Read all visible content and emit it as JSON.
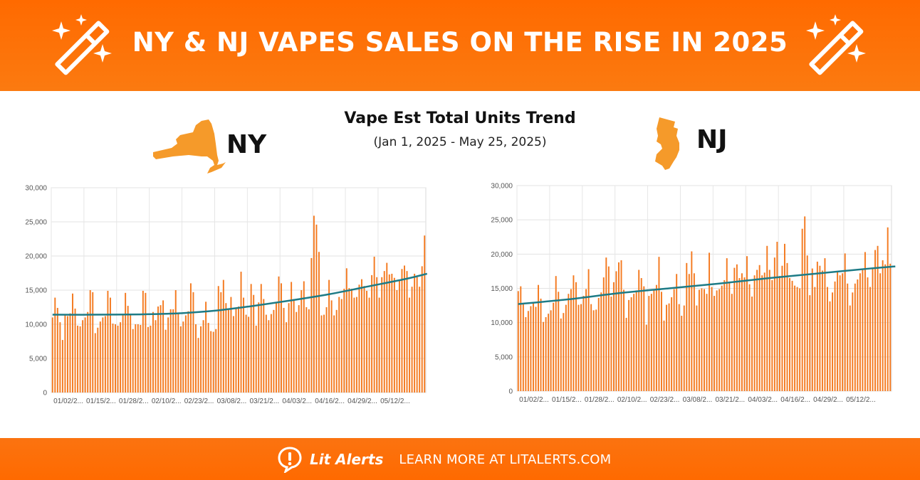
{
  "header": {
    "title": "NY & NJ VAPES SALES ON THE RISE IN 2025"
  },
  "icons": {
    "left_icon": "magic-wand-icon",
    "right_icon": "magic-wand-icon",
    "footer_icon": "alert-bubble-icon"
  },
  "colors": {
    "brand_orange": "#ff6a00",
    "bar_orange": "#f47a20",
    "trend_teal": "#1d7b86",
    "state_fill": "#f59a2a"
  },
  "main": {
    "chart_title": "Vape Est Total Units Trend",
    "date_range": "(Jan 1, 2025 - May 25, 2025)"
  },
  "states": {
    "ny": {
      "label": "NY",
      "icon": "new-york-state-icon"
    },
    "nj": {
      "label": "NJ",
      "icon": "new-jersey-state-icon"
    }
  },
  "footer": {
    "brand": "Lit Alerts",
    "cta": "LEARN MORE AT LITALERTS.COM"
  },
  "chart_data": [
    {
      "id": "ny",
      "type": "bar",
      "title": "NY",
      "ylim": [
        0,
        30000
      ],
      "yticks": [
        0,
        5000,
        10000,
        15000,
        20000,
        25000,
        30000
      ],
      "ytick_labels": [
        "0",
        "5,000",
        "10,000",
        "15,000",
        "20,000",
        "25,000",
        "30,000"
      ],
      "xtick_labels": [
        "01/02/2...",
        "01/15/2...",
        "01/28/2...",
        "02/10/2...",
        "02/23/2...",
        "03/08/2...",
        "03/21/2...",
        "04/03/2...",
        "04/16/2...",
        "04/29/2...",
        "05/12/2..."
      ],
      "xtick_every": 13,
      "series": [
        {
          "name": "Est Total Units",
          "type": "bar",
          "values": [
            11000,
            13900,
            12400,
            10300,
            7700,
            11500,
            11200,
            11600,
            14500,
            12300,
            9800,
            9700,
            10600,
            11000,
            11800,
            15000,
            14700,
            8700,
            9500,
            10400,
            11000,
            11200,
            14900,
            13900,
            10100,
            10000,
            9800,
            10300,
            11500,
            14600,
            12700,
            11500,
            9300,
            10000,
            10000,
            9900,
            14900,
            14600,
            9600,
            9800,
            11800,
            10600,
            12600,
            12800,
            13500,
            9200,
            11000,
            12200,
            12200,
            15000,
            11600,
            9700,
            10400,
            11300,
            11900,
            16000,
            14700,
            10000,
            8000,
            9700,
            10600,
            13300,
            10200,
            9000,
            8900,
            9300,
            15600,
            14700,
            16500,
            13100,
            12100,
            14000,
            11200,
            12300,
            12600,
            17700,
            13900,
            11400,
            11100,
            15900,
            14300,
            9800,
            13200,
            15900,
            13700,
            11400,
            10600,
            11500,
            12100,
            13200,
            17000,
            16000,
            12400,
            10300,
            13100,
            16200,
            13700,
            11800,
            12800,
            15000,
            16300,
            12500,
            12200,
            19700,
            25900,
            24600,
            20600,
            11300,
            11400,
            12500,
            16500,
            13500,
            11300,
            12100,
            14000,
            13700,
            15200,
            18200,
            15300,
            15200,
            13900,
            14000,
            15800,
            16600,
            15600,
            14900,
            13900,
            17200,
            19900,
            16900,
            13900,
            16900,
            17800,
            19000,
            17300,
            17400,
            16800,
            15000,
            16400,
            18100,
            18600,
            17800,
            13900,
            15500,
            17400,
            16900,
            15500,
            18500,
            23000
          ]
        },
        {
          "name": "Trend",
          "type": "line",
          "points": [
            [
              0,
              11400
            ],
            [
              15,
              11400
            ],
            [
              35,
              11450
            ],
            [
              50,
              11600
            ],
            [
              65,
              12000
            ],
            [
              80,
              12700
            ],
            [
              95,
              13500
            ],
            [
              110,
              14400
            ],
            [
              125,
              15500
            ],
            [
              140,
              16600
            ],
            [
              149,
              17400
            ]
          ]
        }
      ]
    },
    {
      "id": "nj",
      "type": "bar",
      "title": "NJ",
      "ylim": [
        0,
        30000
      ],
      "yticks": [
        0,
        5000,
        10000,
        15000,
        20000,
        25000,
        30000
      ],
      "ytick_labels": [
        "0",
        "5,000",
        "10,000",
        "15,000",
        "20,000",
        "25,000",
        "30,000"
      ],
      "xtick_labels": [
        "01/02/2...",
        "01/15/2...",
        "01/28/2...",
        "02/10/2...",
        "02/23/2...",
        "03/08/2...",
        "03/21/2...",
        "04/03/2...",
        "04/16/2...",
        "04/29/2...",
        "05/12/2..."
      ],
      "xtick_every": 13,
      "series": [
        {
          "name": "Est Total Units",
          "type": "bar",
          "values": [
            14600,
            15300,
            12800,
            10800,
            11700,
            12400,
            12800,
            12300,
            15500,
            13500,
            10100,
            10800,
            11300,
            11800,
            12900,
            16800,
            14500,
            10600,
            11400,
            12600,
            14200,
            14900,
            16900,
            15900,
            12600,
            12700,
            13900,
            14900,
            17800,
            12700,
            11800,
            11900,
            13600,
            14400,
            16600,
            19500,
            18200,
            13800,
            15900,
            17500,
            18800,
            19100,
            14800,
            10700,
            13300,
            13700,
            14200,
            14700,
            17700,
            16500,
            15300,
            9700,
            13900,
            14200,
            14800,
            15500,
            19600,
            14500,
            10300,
            12600,
            12800,
            13700,
            14900,
            17100,
            12700,
            11000,
            12500,
            18700,
            17100,
            20400,
            17200,
            12500,
            14800,
            15000,
            14900,
            14200,
            20200,
            15200,
            13900,
            14700,
            14900,
            15400,
            16200,
            19400,
            15800,
            14200,
            18000,
            18500,
            16500,
            17200,
            16600,
            19700,
            15600,
            13800,
            16900,
            17700,
            18400,
            16900,
            17300,
            21200,
            17700,
            16200,
            19500,
            21800,
            16800,
            18300,
            21500,
            18700,
            16500,
            16100,
            15400,
            15200,
            15000,
            23700,
            25500,
            19800,
            14000,
            17900,
            15200,
            18900,
            18300,
            17600,
            19400,
            15200,
            13100,
            14400,
            16000,
            17500,
            16900,
            17200,
            20100,
            15700,
            12500,
            14400,
            15700,
            16300,
            17200,
            17800,
            20300,
            16600,
            15200,
            17800,
            20600,
            21200,
            17200,
            19100,
            18500,
            23900,
            18600
          ]
        },
        {
          "name": "Trend",
          "type": "line",
          "points": [
            [
              0,
              12700
            ],
            [
              20,
              13400
            ],
            [
              40,
              14300
            ],
            [
              60,
              15000
            ],
            [
              80,
              15700
            ],
            [
              100,
              16500
            ],
            [
              120,
              17200
            ],
            [
              140,
              17900
            ],
            [
              150,
              18200
            ]
          ]
        }
      ]
    }
  ]
}
